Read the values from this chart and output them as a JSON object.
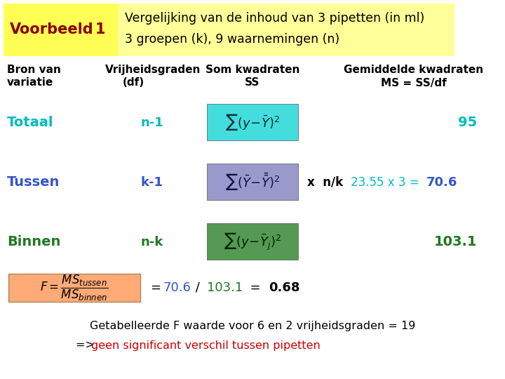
{
  "bg_color": "#FFFFFF",
  "title_box1_color": "#FFFF55",
  "title_box2_color": "#FFFF99",
  "title_label": "Voorbeeld",
  "title_num": "1",
  "title_line1": "Vergelijking van de inhoud van 3 pipetten (in ml)",
  "title_line2": "3 groepen (k), 9 waarnemingen (n)",
  "title_dark_red": "#880000",
  "hdr_bron1": "Bron van",
  "hdr_bron2": "variatie",
  "hdr_df1": "Vrijheidsgraden",
  "hdr_df2": "(df)",
  "hdr_ss1": "Som kwadraten",
  "hdr_ss2": "SS",
  "hdr_ms1": "Gemiddelde kwadraten",
  "hdr_ms2": "MS = SS/df",
  "hdr_color": "#000000",
  "totaal_label": "Totaal",
  "totaal_df": "n-1",
  "totaal_ms": "95",
  "totaal_color": "#00BBBB",
  "totaal_box_color": "#44DDDD",
  "tussen_label": "Tussen",
  "tussen_df": "k-1",
  "tussen_ms_plain": "23.55 x 3 = ",
  "tussen_ms_bold": "70.6",
  "tussen_color": "#3355CC",
  "tussen_box_color": "#9999CC",
  "binnen_label": "Binnen",
  "binnen_df": "n-k",
  "binnen_ms": "103.1",
  "binnen_color": "#227722",
  "binnen_box_color": "#559955",
  "formula_box_color": "#FFAA77",
  "f_plain1": "= ",
  "f_cyan": "70.6",
  "f_plain2": " / ",
  "f_green": "103.1",
  "f_plain3": "  = ",
  "f_bold": "0.68",
  "bottom1": "Getabelleerde F waarde voor 6 en 2 vrijheidsgraden = 19",
  "bottom2_black": "=> ",
  "bottom2_red": "geen significant verschil tussen pipetten",
  "red_color": "#CC0000"
}
